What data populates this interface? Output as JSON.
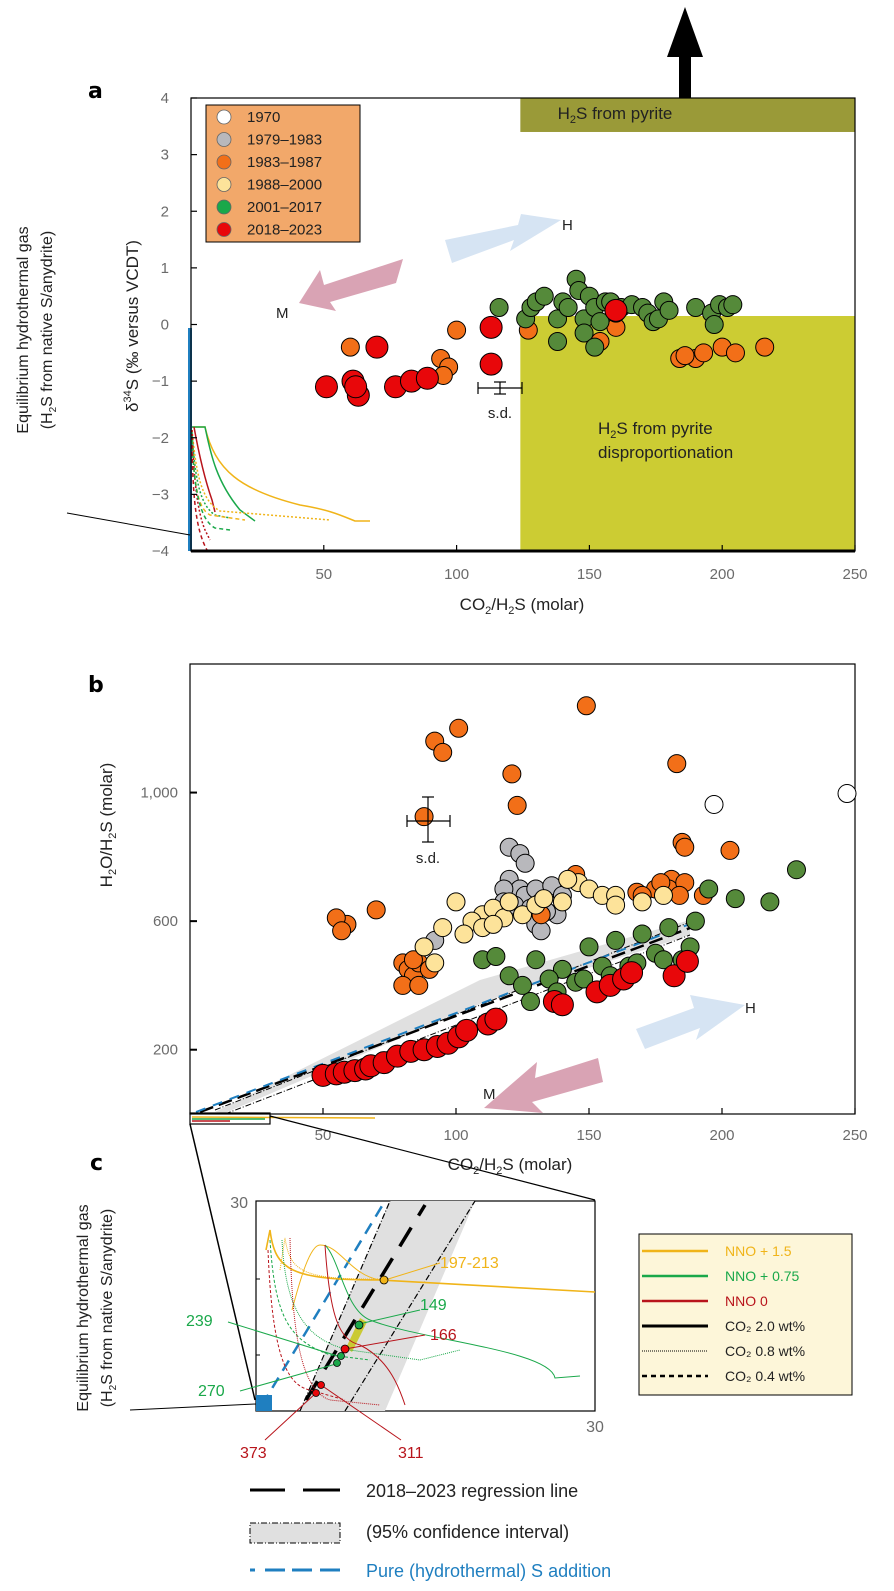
{
  "chart_data": [
    {
      "panel": "a",
      "type": "scatter",
      "xlabel": "CO2/H2S (molar)",
      "ylabel": "δ34S (‰ versus VCDT)",
      "xlim": [
        0,
        250
      ],
      "ylim": [
        -4,
        4
      ],
      "xticks": [
        50,
        100,
        150,
        200,
        250
      ],
      "yticks": [
        4,
        3,
        2,
        1,
        0,
        -1,
        -2,
        -3,
        -4
      ],
      "legend": {
        "placement": "top-left",
        "entries": [
          {
            "label": "1970",
            "color": "#ffffff"
          },
          {
            "label": "1979–1983",
            "color": "#b8b8bc"
          },
          {
            "label": "1983–1987",
            "color": "#f26f18"
          },
          {
            "label": "1988–2000",
            "color": "#fde39a"
          },
          {
            "label": "2001–2017",
            "color": "#1aa84a"
          },
          {
            "label": "2018–2023",
            "color": "#e8070a"
          }
        ]
      },
      "regions": [
        {
          "label": "H2S from pyrite",
          "x": [
            124,
            250
          ],
          "y": [
            3.4,
            4.0
          ],
          "color": "#9a9a38"
        },
        {
          "label": "H2S from pyrite disproportionation",
          "x": [
            124,
            250
          ],
          "y": [
            -4,
            0.15
          ],
          "color": "#cccc33"
        }
      ],
      "arrows": [
        {
          "label": "M",
          "from": [
            78,
            0.9
          ],
          "to": [
            54,
            0.45
          ],
          "color": "#d9a3b4"
        },
        {
          "label": "H",
          "from": [
            100,
            1.1
          ],
          "to": [
            134,
            1.7
          ],
          "color": "#d6e4f3"
        }
      ],
      "error_bar": {
        "label": "s.d.",
        "x": 113,
        "y": -1.1,
        "xerr": 8,
        "yerr": 0.12
      },
      "series": [
        {
          "name": "1983–1987",
          "color": "#f26f18",
          "points": [
            [
              60,
              -0.4
            ],
            [
              94,
              -0.6
            ],
            [
              97,
              -0.75
            ],
            [
              95,
              -0.9
            ],
            [
              100,
              -0.1
            ],
            [
              127,
              -0.1
            ],
            [
              154,
              -0.3
            ],
            [
              190,
              -0.6
            ],
            [
              184,
              -0.6
            ],
            [
              193,
              -0.5
            ],
            [
              200,
              -0.4
            ],
            [
              205,
              -0.5
            ],
            [
              216,
              -0.4
            ],
            [
              186,
              -0.55
            ],
            [
              160,
              -0.05
            ]
          ]
        },
        {
          "name": "2001–2017",
          "color": "#558a3a",
          "points": [
            [
              116,
              0.3
            ],
            [
              126,
              0.1
            ],
            [
              128,
              0.3
            ],
            [
              130,
              0.4
            ],
            [
              133,
              0.5
            ],
            [
              138,
              0.1
            ],
            [
              140,
              0.4
            ],
            [
              142,
              0.3
            ],
            [
              145,
              0.8
            ],
            [
              146,
              0.6
            ],
            [
              148,
              0.1
            ],
            [
              150,
              0.5
            ],
            [
              152,
              0.3
            ],
            [
              154,
              0.05
            ],
            [
              156,
              0.4
            ],
            [
              158,
              0.4
            ],
            [
              160,
              0.2
            ],
            [
              162,
              0.3
            ],
            [
              166,
              0.35
            ],
            [
              170,
              0.3
            ],
            [
              172,
              0.2
            ],
            [
              174,
              0.05
            ],
            [
              176,
              0.1
            ],
            [
              178,
              0.4
            ],
            [
              180,
              0.25
            ],
            [
              190,
              0.3
            ],
            [
              196,
              0.2
            ],
            [
              197,
              0.0
            ],
            [
              199,
              0.35
            ],
            [
              202,
              0.3
            ],
            [
              204,
              0.35
            ],
            [
              138,
              -0.3
            ],
            [
              148,
              -0.15
            ],
            [
              152,
              -0.4
            ]
          ]
        },
        {
          "name": "2018–2023",
          "color": "#e8070a",
          "points": [
            [
              51,
              -1.1
            ],
            [
              61,
              -1.0
            ],
            [
              63,
              -1.25
            ],
            [
              62,
              -1.1
            ],
            [
              70,
              -0.4
            ],
            [
              77,
              -1.1
            ],
            [
              83,
              -1.0
            ],
            [
              89,
              -0.95
            ],
            [
              113,
              -0.05
            ],
            [
              113,
              -0.7
            ],
            [
              160,
              0.25
            ]
          ]
        }
      ],
      "model_curves": "Equilibrium hydrothermal gas (H2S from native S/anydrite) at x≈0; model curves from -1.7 to -3.9 at low CO2/H2S"
    },
    {
      "panel": "b",
      "type": "scatter",
      "xlabel": "CO2/H2S (molar)",
      "ylabel": "H2O/H2S (molar)",
      "xlim": [
        0,
        250
      ],
      "ylim": [
        0,
        1400
      ],
      "xticks": [
        50,
        100,
        150,
        200,
        250
      ],
      "yticks": [
        200,
        600,
        1000
      ],
      "ytick_labels": [
        "200",
        "600",
        "1,000"
      ],
      "arrows": [
        {
          "label": "M",
          "from": [
            145,
            270
          ],
          "to": [
            108,
            160
          ],
          "color": "#d9a3b4"
        },
        {
          "label": "H",
          "from": [
            152,
            300
          ],
          "to": [
            193,
            430
          ],
          "color": "#d6e4f3"
        }
      ],
      "error_bar": {
        "label": "s.d.",
        "x": 88,
        "y": 925,
        "xerr": 8,
        "yerr": 70
      },
      "series": [
        {
          "name": "1970",
          "color": "#ffffff",
          "points": [
            [
              197,
              963
            ],
            [
              247,
              997
            ]
          ]
        },
        {
          "name": "1979–1983",
          "color": "#b8b8bc",
          "points": [
            [
              120,
              830
            ],
            [
              124,
              810
            ],
            [
              126,
              780
            ],
            [
              120,
              730
            ],
            [
              124,
              700
            ],
            [
              118,
              700
            ],
            [
              126,
              680
            ],
            [
              118,
              660
            ],
            [
              122,
              650
            ],
            [
              130,
              700
            ],
            [
              128,
              640
            ],
            [
              132,
              660
            ],
            [
              138,
              620
            ],
            [
              134,
              630
            ],
            [
              136,
              710
            ],
            [
              140,
              680
            ],
            [
              130,
              590
            ],
            [
              132,
              570
            ],
            [
              92,
              540
            ]
          ]
        },
        {
          "name": "1983–1987",
          "color": "#f26f18",
          "points": [
            [
              149,
              1270
            ],
            [
              101,
              1200
            ],
            [
              92,
              1160
            ],
            [
              95,
              1125
            ],
            [
              183,
              1090
            ],
            [
              121,
              1058
            ],
            [
              123,
              960
            ],
            [
              88,
              925
            ],
            [
              59,
              590
            ],
            [
              55,
              610
            ],
            [
              57,
              570
            ],
            [
              70,
              635
            ],
            [
              145,
              745
            ],
            [
              185,
              845
            ],
            [
              186,
              830
            ],
            [
              203,
              820
            ],
            [
              181,
              730
            ],
            [
              180,
              700
            ],
            [
              186,
              720
            ],
            [
              193,
              680
            ],
            [
              175,
              700
            ],
            [
              168,
              690
            ],
            [
              177,
              720
            ],
            [
              184,
              680
            ],
            [
              80,
              470
            ],
            [
              82,
              450
            ],
            [
              84,
              430
            ],
            [
              86,
              470
            ],
            [
              80,
              400
            ],
            [
              86,
              400
            ],
            [
              90,
              450
            ],
            [
              84,
              480
            ],
            [
              132,
              620
            ],
            [
              170,
              680
            ]
          ]
        },
        {
          "name": "1988–2000",
          "color": "#fde39a",
          "points": [
            [
              100,
              660
            ],
            [
              95,
              580
            ],
            [
              110,
              620
            ],
            [
              106,
              600
            ],
            [
              114,
              640
            ],
            [
              118,
              610
            ],
            [
              120,
              660
            ],
            [
              125,
              620
            ],
            [
              130,
              650
            ],
            [
              133,
              670
            ],
            [
              140,
              660
            ],
            [
              146,
              720
            ],
            [
              142,
              730
            ],
            [
              150,
              700
            ],
            [
              155,
              680
            ],
            [
              160,
              680
            ],
            [
              110,
              580
            ],
            [
              103,
              560
            ],
            [
              114,
              590
            ],
            [
              160,
              650
            ],
            [
              170,
              660
            ],
            [
              178,
              680
            ],
            [
              88,
              520
            ],
            [
              92,
              470
            ]
          ]
        },
        {
          "name": "2001–2017",
          "color": "#558a3a",
          "points": [
            [
              228,
              760
            ],
            [
              218,
              660
            ],
            [
              205,
              670
            ],
            [
              195,
              700
            ],
            [
              110,
              480
            ],
            [
              115,
              490
            ],
            [
              120,
              430
            ],
            [
              130,
              480
            ],
            [
              140,
              450
            ],
            [
              150,
              520
            ],
            [
              160,
              540
            ],
            [
              170,
              560
            ],
            [
              180,
              580
            ],
            [
              190,
              600
            ],
            [
              125,
              400
            ],
            [
              135,
              420
            ],
            [
              145,
              410
            ],
            [
              155,
              460
            ],
            [
              165,
              460
            ],
            [
              175,
              500
            ],
            [
              185,
              480
            ],
            [
              128,
              350
            ],
            [
              138,
              380
            ],
            [
              148,
              420
            ],
            [
              158,
              430
            ],
            [
              168,
              470
            ],
            [
              178,
              480
            ],
            [
              188,
              520
            ]
          ]
        },
        {
          "name": "2018–2023",
          "color": "#e8070a",
          "points": [
            [
              50,
              120
            ],
            [
              55,
              125
            ],
            [
              58,
              130
            ],
            [
              62,
              135
            ],
            [
              66,
              140
            ],
            [
              68,
              150
            ],
            [
              73,
              160
            ],
            [
              78,
              180
            ],
            [
              83,
              195
            ],
            [
              88,
              200
            ],
            [
              93,
              210
            ],
            [
              97,
              220
            ],
            [
              101,
              240
            ],
            [
              104,
              260
            ],
            [
              112,
              280
            ],
            [
              115,
              295
            ],
            [
              137,
              350
            ],
            [
              140,
              340
            ],
            [
              153,
              380
            ],
            [
              158,
              400
            ],
            [
              163,
              420
            ],
            [
              166,
              440
            ],
            [
              182,
              430
            ],
            [
              187,
              475
            ]
          ]
        }
      ],
      "inset_box": {
        "x": [
          0,
          30
        ],
        "y": [
          0,
          30
        ]
      }
    },
    {
      "panel": "c",
      "type": "line",
      "description": "Zoom of panel b for CO2/H2S 0–30 and H2O/H2S 0–30",
      "xlim": [
        0,
        30
      ],
      "ylim": [
        0,
        30
      ],
      "xticks": [
        30
      ],
      "yticks": [
        30
      ],
      "annotations": [
        {
          "label": "197-213",
          "color": "#f0b419"
        },
        {
          "label": "149",
          "color": "#1aa84a"
        },
        {
          "label": "166",
          "color": "#b8141b"
        },
        {
          "label": "239",
          "color": "#1aa84a"
        },
        {
          "label": "270",
          "color": "#1aa84a"
        },
        {
          "label": "373",
          "color": "#b8141b"
        },
        {
          "label": "311",
          "color": "#b8141b"
        }
      ],
      "legend": {
        "placement": "right",
        "entries": [
          {
            "label": "NNO + 1.5",
            "color": "#f0b419",
            "style": "solid"
          },
          {
            "label": "NNO + 0.75",
            "color": "#1aa84a",
            "style": "solid"
          },
          {
            "label": "NNO 0",
            "color": "#b8141b",
            "style": "solid"
          },
          {
            "label": "CO₂ 2.0 wt%",
            "color": "#000000",
            "style": "solid"
          },
          {
            "label": "CO₂ 0.8 wt%",
            "color": "#000000",
            "style": "dotted"
          },
          {
            "label": "CO₂ 0.4 wt%",
            "color": "#000000",
            "style": "dashed"
          }
        ]
      }
    }
  ],
  "labels": {
    "panel_a": "a",
    "panel_b": "b",
    "panel_c": "c",
    "a_ylabel_prefix": "δ",
    "a_ylabel_sup": "34",
    "a_ylabel_rest": "S (‰ versus VCDT)",
    "xlabel_pre": "CO",
    "xlabel_sub1": "2",
    "xlabel_mid": "/H",
    "xlabel_sub2": "2",
    "xlabel_post": "S (molar)",
    "b_ylabel_pre": "H",
    "b_ylabel_sub1": "2",
    "b_ylabel_mid": "O/H",
    "b_ylabel_sub2": "2",
    "b_ylabel_post": "S (molar)",
    "pyrite_pre": "H",
    "pyrite_sub": "2",
    "pyrite_post": "S from pyrite",
    "disp_line1_pre": "H",
    "disp_line1_sub": "2",
    "disp_line1_post": "S from pyrite",
    "disp_line2": "disproportionation",
    "equil_line1": "Equilibrium hydrothermal gas",
    "equil_line2_pre": "(H",
    "equil_line2_sub": "2",
    "equil_line2_post": "S from native S/anydrite)",
    "arrow_m": "M",
    "arrow_h": "H",
    "sd": "s.d.",
    "bottom_legend": [
      "2018–2023 regression line",
      "(95% confidence interval)",
      "Pure (hydrothermal) S addition"
    ],
    "c_tick_30": "30"
  }
}
